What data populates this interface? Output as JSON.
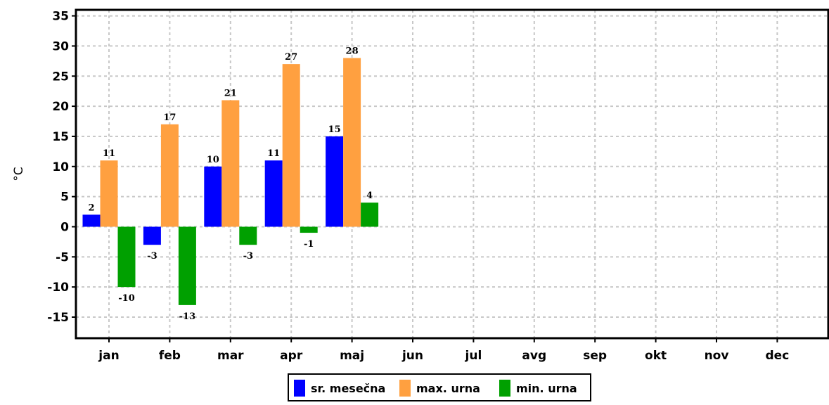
{
  "chart_data": {
    "type": "bar",
    "title": "",
    "xlabel": "",
    "ylabel": "°C",
    "ylim": [
      -18.5,
      36
    ],
    "yticks": [
      -15,
      -10,
      -5,
      0,
      5,
      10,
      15,
      20,
      25,
      30,
      35
    ],
    "ytick_labels": [
      "-15",
      "-10",
      "-5",
      "0",
      "5",
      "10",
      "15",
      "20",
      "25",
      "30",
      "35"
    ],
    "grid": true,
    "legend_position": "bottom",
    "categories": [
      "jan",
      "feb",
      "mar",
      "apr",
      "maj",
      "jun",
      "jul",
      "avg",
      "sep",
      "okt",
      "nov",
      "dec"
    ],
    "series": [
      {
        "name": "sr. mesečna",
        "color": "#0000ff",
        "values": [
          2,
          -3,
          10,
          11,
          15,
          null,
          null,
          null,
          null,
          null,
          null,
          null
        ]
      },
      {
        "name": "max. urna",
        "color": "#ffa040",
        "values": [
          11,
          17,
          21,
          27,
          28,
          null,
          null,
          null,
          null,
          null,
          null,
          null
        ]
      },
      {
        "name": "min. urna",
        "color": "#00a000",
        "values": [
          -10,
          -13,
          -3,
          -1,
          4,
          null,
          null,
          null,
          null,
          null,
          null,
          null
        ]
      }
    ]
  }
}
